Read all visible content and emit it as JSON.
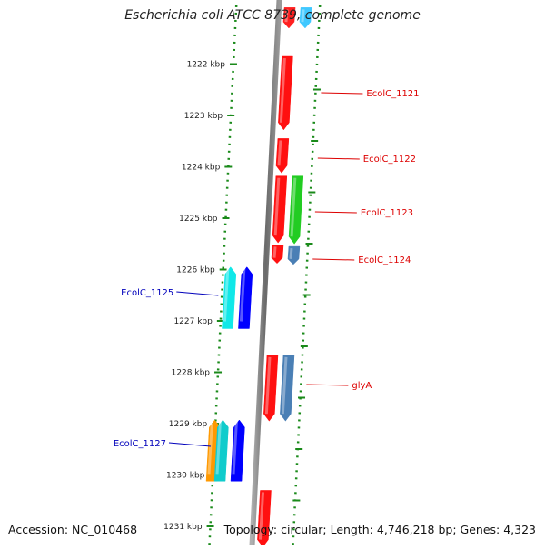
{
  "title": "Escherichia coli ATCC 8739, complete genome",
  "footer": {
    "accession": "Accession: NC_010468",
    "topology": "Topology: circular; Length: 4,746,218 bp; Genes: 4,323"
  },
  "axis_ticks": [
    {
      "label": "1222 kbp",
      "kbp": 1222
    },
    {
      "label": "1223 kbp",
      "kbp": 1223
    },
    {
      "label": "1224 kbp",
      "kbp": 1224
    },
    {
      "label": "1225 kbp",
      "kbp": 1225
    },
    {
      "label": "1226 kbp",
      "kbp": 1226
    },
    {
      "label": "1227 kbp",
      "kbp": 1227
    },
    {
      "label": "1228 kbp",
      "kbp": 1228
    },
    {
      "label": "1229 kbp",
      "kbp": 1229
    },
    {
      "label": "1230 kbp",
      "kbp": 1230
    },
    {
      "label": "1231 kbp",
      "kbp": 1231
    }
  ],
  "genes": [
    {
      "label": "",
      "start_kbp": 1220.9,
      "end_kbp": 1221.3,
      "strand": "+",
      "track": 1,
      "color": "#ff2020"
    },
    {
      "label": "",
      "start_kbp": 1220.9,
      "end_kbp": 1221.3,
      "strand": "+",
      "track": 2,
      "color": "#40c8ff"
    },
    {
      "label": "EcolC_1121",
      "start_kbp": 1221.85,
      "end_kbp": 1223.28,
      "strand": "+",
      "track": 1,
      "color": "#ff1010"
    },
    {
      "label": "EcolC_1122",
      "start_kbp": 1223.45,
      "end_kbp": 1224.12,
      "strand": "+",
      "track": 1,
      "color": "#ff1010"
    },
    {
      "label": "EcolC_1123",
      "start_kbp": 1224.18,
      "end_kbp": 1225.48,
      "strand": "+",
      "track": 1,
      "color": "#ff1010"
    },
    {
      "label": "",
      "start_kbp": 1224.18,
      "end_kbp": 1225.5,
      "strand": "+",
      "track": 2,
      "color": "#22cc22"
    },
    {
      "label": "EcolC_1124",
      "start_kbp": 1225.52,
      "end_kbp": 1225.88,
      "strand": "+",
      "track": 1,
      "color": "#ff1010"
    },
    {
      "label": "",
      "start_kbp": 1225.55,
      "end_kbp": 1225.9,
      "strand": "+",
      "track": 2,
      "color": "#4a7fb5"
    },
    {
      "label": "EcolC_1125",
      "start_kbp": 1225.95,
      "end_kbp": 1227.15,
      "strand": "-",
      "track": -2,
      "color": "#10e8e8"
    },
    {
      "label": "",
      "start_kbp": 1225.95,
      "end_kbp": 1227.15,
      "strand": "-",
      "track": -1,
      "color": "#0000ff"
    },
    {
      "label": "glyA",
      "start_kbp": 1227.67,
      "end_kbp": 1228.95,
      "strand": "+",
      "track": 1,
      "color": "#ff1010"
    },
    {
      "label": "",
      "start_kbp": 1227.67,
      "end_kbp": 1228.95,
      "strand": "+",
      "track": 2,
      "color": "#4a7fb5"
    },
    {
      "label": "EcolC_1127",
      "start_kbp": 1228.93,
      "end_kbp": 1230.12,
      "strand": "-",
      "track": -3,
      "color": "#ff9900"
    },
    {
      "label": "",
      "start_kbp": 1228.93,
      "end_kbp": 1230.12,
      "strand": "-",
      "track": -2,
      "color": "#10cccc"
    },
    {
      "label": "",
      "start_kbp": 1228.93,
      "end_kbp": 1230.12,
      "strand": "-",
      "track": -1,
      "color": "#0000ff"
    },
    {
      "label": "",
      "start_kbp": 1230.3,
      "end_kbp": 1231.4,
      "strand": "+",
      "track": 1,
      "color": "#ff1010"
    }
  ],
  "colors": {
    "backbone": "#808080",
    "dotted_guide": "#1a8a1a",
    "tick": "#1a8a1a",
    "forward_label": "#dd0000",
    "reverse_label": "#0000bb"
  }
}
